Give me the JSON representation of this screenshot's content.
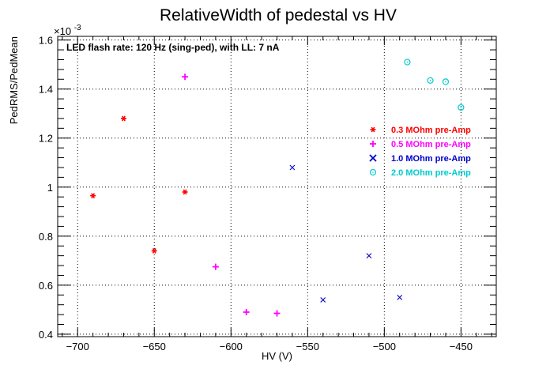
{
  "chart_data": {
    "type": "scatter",
    "title": "RelativeWidth of pedestal vs HV",
    "xlabel": "HV (V)",
    "ylabel": "PedRMS/PedMean",
    "y_exponent_label": "×10",
    "y_exponent_power": "-3",
    "annotation": "LED flash rate: 120 Hz  (sing-ped), with LL: 7 nA",
    "xlim": [
      -713,
      -427
    ],
    "ylim": [
      0.39,
      1.615
    ],
    "x_ticks": [
      -700,
      -650,
      -600,
      -550,
      -500,
      -450
    ],
    "x_tick_labels": [
      "−700",
      "−650",
      "−600",
      "−550",
      "−500",
      "−450"
    ],
    "y_ticks": [
      0.4,
      0.6,
      0.8,
      1.0,
      1.2,
      1.4,
      1.6
    ],
    "y_tick_labels": [
      "0.4",
      "0.6",
      "0.8",
      "1",
      "1.2",
      "1.4",
      "1.6"
    ],
    "grid": true,
    "legend_position": "right-middle",
    "series": [
      {
        "name": "0.3 MOhm pre-Amp",
        "marker": "star",
        "color": "#ff0000",
        "x": [
          -690,
          -670,
          -650,
          -630
        ],
        "y": [
          0.965,
          1.28,
          0.74,
          0.98
        ]
      },
      {
        "name": "0.5 MOhm pre-Amp",
        "marker": "plus",
        "color": "#ff00ff",
        "x": [
          -630,
          -610,
          -590,
          -570
        ],
        "y": [
          1.45,
          0.675,
          0.49,
          0.485
        ]
      },
      {
        "name": "1.0 MOhm pre-Amp",
        "marker": "cross",
        "color": "#0000cc",
        "x": [
          -560,
          -540,
          -510,
          -490
        ],
        "y": [
          1.08,
          0.54,
          0.72,
          0.55
        ]
      },
      {
        "name": "2.0 MOhm pre-Amp",
        "marker": "circle",
        "color": "#00cccc",
        "x": [
          -485,
          -470,
          -460,
          -450
        ],
        "y": [
          1.51,
          1.435,
          1.43,
          1.325
        ]
      }
    ]
  }
}
